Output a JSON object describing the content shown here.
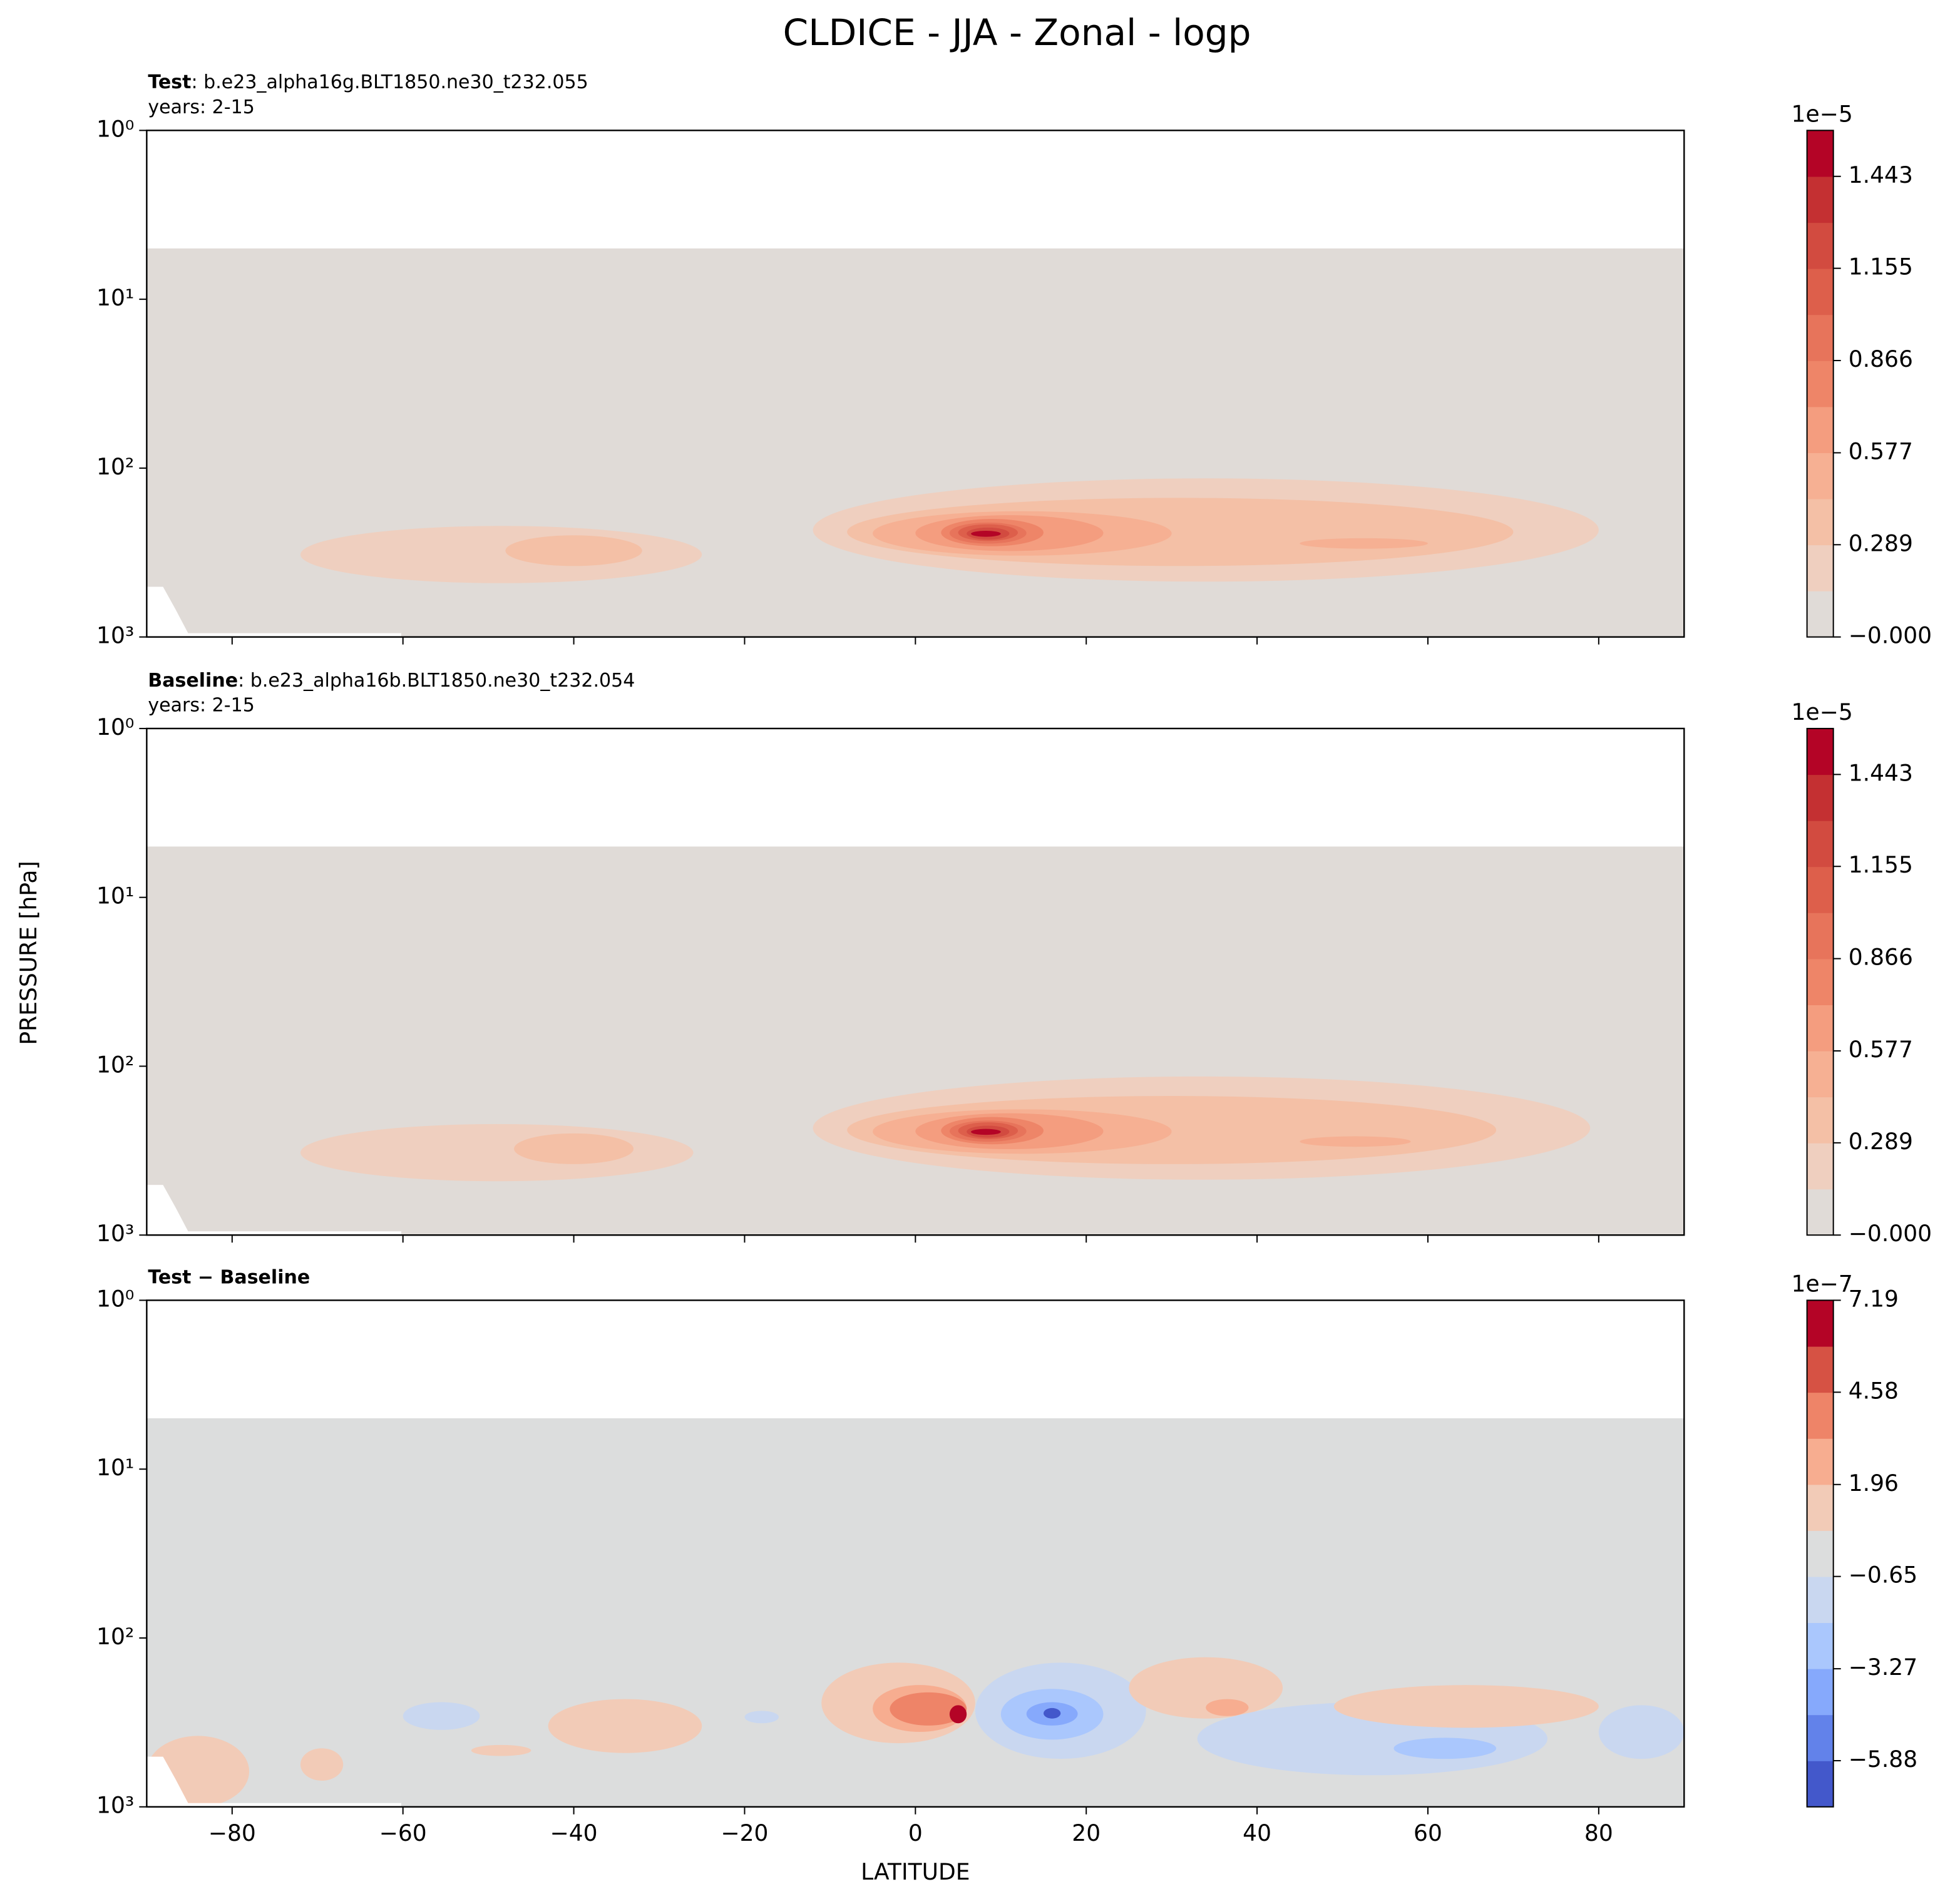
{
  "figure": {
    "title": "CLDICE - JJA - Zonal - logp",
    "xlabel": "LATITUDE",
    "ylabel": "PRESSURE [hPa]"
  },
  "chart_data": [
    {
      "type": "contourf",
      "label": "Test",
      "case": ": b.e23_alpha16g.BLT1850.ne30_t232.055",
      "years": "years: 2-15",
      "xlim": [
        -90,
        90
      ],
      "xticks": [
        -80,
        -60,
        -40,
        -20,
        0,
        20,
        40,
        60,
        80
      ],
      "ylim": [
        1000,
        1
      ],
      "ylog": true,
      "yticks": [
        {
          "value": 1,
          "label": "10⁰"
        },
        {
          "value": 10,
          "label": "10¹"
        },
        {
          "value": 100,
          "label": "10²"
        },
        {
          "value": 1000,
          "label": "10³"
        }
      ],
      "colorbar": {
        "offset_label": "1e−5",
        "lim": [
          0,
          1.587
        ],
        "ticks": [
          {
            "value": 0,
            "label": "−0.000"
          },
          0.289,
          0.577,
          0.866,
          1.155,
          1.443
        ],
        "colors": [
          "#e0dbd7",
          "#efcfbf",
          "#f4c0a6",
          "#f6b093",
          "#f49d7f",
          "#ee8568",
          "#e7745b",
          "#dd5f4b",
          "#d24b40",
          "#c43032",
          "#b40426"
        ]
      },
      "contours": [
        {
          "shape": "rect",
          "lat": [
            -90,
            90
          ],
          "p": [
            5,
            1000
          ],
          "value": 0
        },
        {
          "lat": [
            -72,
            -25
          ],
          "p": [
            220,
            480
          ],
          "value": 0.15
        },
        {
          "lat": [
            -48,
            -32
          ],
          "p": [
            250,
            380
          ],
          "value": 0.3
        },
        {
          "lat": [
            -12,
            80
          ],
          "p": [
            115,
            470
          ],
          "value": 0.15
        },
        {
          "lat": [
            -8,
            70
          ],
          "p": [
            150,
            380
          ],
          "value": 0.3
        },
        {
          "lat": [
            45,
            60
          ],
          "p": [
            260,
            300
          ],
          "value": 0.45
        },
        {
          "lat": [
            -5,
            30
          ],
          "p": [
            180,
            330
          ],
          "value": 0.45
        },
        {
          "lat": [
            0,
            22
          ],
          "p": [
            190,
            310
          ],
          "value": 0.6
        },
        {
          "lat": [
            3,
            15
          ],
          "p": [
            200,
            290
          ],
          "value": 0.75
        },
        {
          "lat": [
            4,
            13
          ],
          "p": [
            210,
            280
          ],
          "value": 0.9
        },
        {
          "lat": [
            5,
            12
          ],
          "p": [
            215,
            270
          ],
          "value": 1.05
        },
        {
          "lat": [
            6,
            11
          ],
          "p": [
            225,
            265
          ],
          "value": 1.2
        },
        {
          "lat": [
            6.5,
            10
          ],
          "p": [
            235,
            255
          ],
          "value": 1.45
        }
      ]
    },
    {
      "type": "contourf",
      "label": "Baseline",
      "case": ": b.e23_alpha16b.BLT1850.ne30_t232.054",
      "years": "years: 2-15",
      "xlim": [
        -90,
        90
      ],
      "xticks": [
        -80,
        -60,
        -40,
        -20,
        0,
        20,
        40,
        60,
        80
      ],
      "ylim": [
        1000,
        1
      ],
      "ylog": true,
      "yticks": [
        {
          "value": 1,
          "label": "10⁰"
        },
        {
          "value": 10,
          "label": "10¹"
        },
        {
          "value": 100,
          "label": "10²"
        },
        {
          "value": 1000,
          "label": "10³"
        }
      ],
      "colorbar": {
        "offset_label": "1e−5",
        "lim": [
          0,
          1.587
        ],
        "ticks": [
          {
            "value": 0,
            "label": "−0.000"
          },
          0.289,
          0.577,
          0.866,
          1.155,
          1.443
        ],
        "colors": [
          "#e0dbd7",
          "#efcfbf",
          "#f4c0a6",
          "#f6b093",
          "#f49d7f",
          "#ee8568",
          "#e7745b",
          "#dd5f4b",
          "#d24b40",
          "#c43032",
          "#b40426"
        ]
      },
      "contours": [
        {
          "shape": "rect",
          "lat": [
            -90,
            90
          ],
          "p": [
            5,
            1000
          ],
          "value": 0
        },
        {
          "lat": [
            -72,
            -26
          ],
          "p": [
            220,
            480
          ],
          "value": 0.15
        },
        {
          "lat": [
            -47,
            -33
          ],
          "p": [
            250,
            380
          ],
          "value": 0.3
        },
        {
          "lat": [
            -12,
            79
          ],
          "p": [
            115,
            470
          ],
          "value": 0.15
        },
        {
          "lat": [
            -8,
            68
          ],
          "p": [
            150,
            380
          ],
          "value": 0.3
        },
        {
          "lat": [
            45,
            58
          ],
          "p": [
            260,
            300
          ],
          "value": 0.45
        },
        {
          "lat": [
            -5,
            30
          ],
          "p": [
            180,
            330
          ],
          "value": 0.45
        },
        {
          "lat": [
            0,
            22
          ],
          "p": [
            190,
            310
          ],
          "value": 0.6
        },
        {
          "lat": [
            3,
            15
          ],
          "p": [
            200,
            290
          ],
          "value": 0.75
        },
        {
          "lat": [
            4,
            13
          ],
          "p": [
            210,
            280
          ],
          "value": 0.9
        },
        {
          "lat": [
            5,
            12
          ],
          "p": [
            215,
            270
          ],
          "value": 1.05
        },
        {
          "lat": [
            6,
            11
          ],
          "p": [
            225,
            265
          ],
          "value": 1.2
        },
        {
          "lat": [
            6.5,
            10
          ],
          "p": [
            235,
            255
          ],
          "value": 1.45
        }
      ]
    },
    {
      "type": "contourf",
      "label": "Test − Baseline",
      "xlim": [
        -90,
        90
      ],
      "xticks": [
        {
          "value": -80,
          "label": "−80"
        },
        {
          "value": -60,
          "label": "−60"
        },
        {
          "value": -40,
          "label": "−40"
        },
        {
          "value": -20,
          "label": "−20"
        },
        0,
        20,
        40,
        60,
        80
      ],
      "ylim": [
        1000,
        1
      ],
      "ylog": true,
      "yticks": [
        {
          "value": 1,
          "label": "10⁰"
        },
        {
          "value": 10,
          "label": "10¹"
        },
        {
          "value": 100,
          "label": "10²"
        },
        {
          "value": 1000,
          "label": "10³"
        }
      ],
      "colorbar": {
        "offset_label": "1e−7",
        "lim": [
          -7.19,
          7.19
        ],
        "ticks": [
          {
            "value": -5.88,
            "label": "−5.88"
          },
          {
            "value": -3.27,
            "label": "−3.27"
          },
          {
            "value": -0.65,
            "label": "−0.65"
          },
          1.96,
          4.58,
          7.19
        ],
        "colors": [
          "#4358cb",
          "#6282ea",
          "#86a9fc",
          "#aac7fd",
          "#c9d7f0",
          "#dcdddd",
          "#f2cbb7",
          "#f7ad90",
          "#ee8468",
          "#d65244",
          "#b40426"
        ]
      },
      "contours": [
        {
          "shape": "rect",
          "lat": [
            -90,
            90
          ],
          "p": [
            5,
            1000
          ],
          "value": 0
        },
        {
          "lat": [
            -90,
            -78
          ],
          "p": [
            380,
            1000
          ],
          "value": 1.3
        },
        {
          "lat": [
            -72,
            -67
          ],
          "p": [
            450,
            700
          ],
          "value": 1.3
        },
        {
          "lat": [
            -60,
            -51
          ],
          "p": [
            240,
            350
          ],
          "value": -1.3
        },
        {
          "lat": [
            -52,
            -45
          ],
          "p": [
            430,
            500
          ],
          "value": 1.3
        },
        {
          "lat": [
            -43,
            -25
          ],
          "p": [
            230,
            480
          ],
          "value": 1.3
        },
        {
          "lat": [
            -20,
            -16
          ],
          "p": [
            270,
            320
          ],
          "value": -1.3
        },
        {
          "lat": [
            -11,
            7
          ],
          "p": [
            140,
            420
          ],
          "value": 1.3
        },
        {
          "lat": [
            -5,
            6
          ],
          "p": [
            190,
            360
          ],
          "value": 2.8
        },
        {
          "lat": [
            -3,
            6
          ],
          "p": [
            210,
            330
          ],
          "value": 4
        },
        {
          "lat": [
            4,
            6
          ],
          "p": [
            250,
            320
          ],
          "value": 6.5
        },
        {
          "lat": [
            7,
            27
          ],
          "p": [
            140,
            520
          ],
          "value": -1.3
        },
        {
          "lat": [
            10,
            22
          ],
          "p": [
            200,
            400
          ],
          "value": -2.6
        },
        {
          "lat": [
            13,
            19
          ],
          "p": [
            240,
            330
          ],
          "value": -4.5
        },
        {
          "lat": [
            15,
            17
          ],
          "p": [
            260,
            300
          ],
          "value": -6.5
        },
        {
          "lat": [
            25,
            43
          ],
          "p": [
            130,
            300
          ],
          "value": 1.3
        },
        {
          "lat": [
            34,
            39
          ],
          "p": [
            230,
            290
          ],
          "value": 3
        },
        {
          "lat": [
            33,
            74
          ],
          "p": [
            240,
            650
          ],
          "value": -1.3
        },
        {
          "lat": [
            56,
            68
          ],
          "p": [
            390,
            520
          ],
          "value": -3
        },
        {
          "lat": [
            49,
            80
          ],
          "p": [
            190,
            340
          ],
          "value": 1.3
        },
        {
          "lat": [
            80,
            90
          ],
          "p": [
            250,
            520
          ],
          "value": -1.3
        }
      ]
    }
  ]
}
